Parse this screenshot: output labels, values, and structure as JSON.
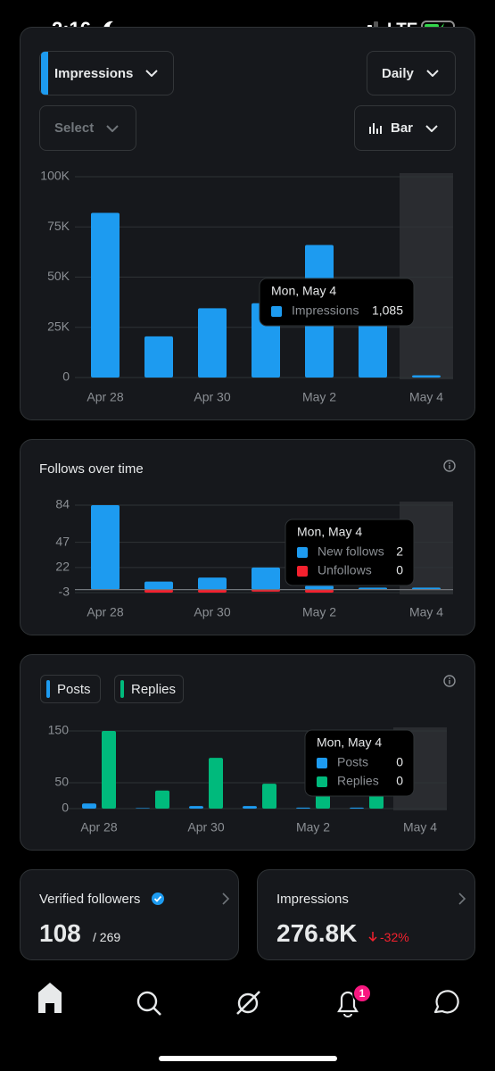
{
  "status_bar": {
    "time": "2:16",
    "network": "LTE"
  },
  "controls": {
    "metric": "Impressions",
    "period": "Daily",
    "compare": "Select",
    "chart_type": "Bar"
  },
  "chart_data": [
    {
      "type": "bar",
      "categories": [
        "Apr 28",
        null,
        "Apr 30",
        null,
        "May 2",
        null,
        "May 4"
      ],
      "series": [
        {
          "name": "Impressions",
          "color": "#1d9bf0",
          "values": [
            82000,
            20500,
            34500,
            37000,
            66000,
            32000,
            1085
          ],
          "value_labels": [
            null,
            null,
            null,
            null,
            null,
            null,
            "1,085"
          ]
        }
      ],
      "ylim": [
        0,
        100000
      ],
      "yticks": [
        0,
        {
          "value": 25000,
          "label": "25K"
        },
        {
          "value": 50000,
          "label": "50K"
        },
        {
          "value": 75000,
          "label": "75K"
        },
        {
          "value": 100000,
          "label": "100K"
        }
      ],
      "grid": true,
      "tooltip": {
        "title": "Mon, May 4"
      }
    },
    {
      "type": "bar",
      "title": "Follows over time",
      "stacked": true,
      "categories": [
        "Apr 28",
        null,
        "Apr 30",
        null,
        "May 2",
        null,
        "May 4"
      ],
      "series": [
        {
          "name": "New follows",
          "color": "#1d9bf0",
          "values": [
            84,
            8,
            12,
            22,
            4,
            2,
            2
          ]
        },
        {
          "name": "Unfollows",
          "color": "#f4212e",
          "values": [
            0,
            -3,
            -3,
            -2,
            -3,
            0,
            0
          ]
        }
      ],
      "ylim": [
        -3,
        84
      ],
      "yticks": [
        -3,
        22,
        47,
        84
      ],
      "grid": true,
      "tooltip": {
        "title": "Mon, May 4"
      }
    },
    {
      "type": "bar",
      "categories": [
        "Apr 28",
        null,
        "Apr 30",
        null,
        "May 2",
        null,
        "May 4"
      ],
      "series": [
        {
          "name": "Posts",
          "color": "#1d9bf0",
          "values": [
            10,
            1,
            5,
            5,
            2,
            2,
            0
          ]
        },
        {
          "name": "Replies",
          "color": "#00ba7c",
          "values": [
            150,
            35,
            98,
            48,
            45,
            40,
            0
          ]
        }
      ],
      "ylim": [
        0,
        150
      ],
      "yticks": [
        0,
        50,
        150
      ],
      "grid": true,
      "tooltip": {
        "title": "Mon, May 4"
      }
    }
  ],
  "cards": [
    {
      "title": "Verified followers",
      "value": "108",
      "total": "/ 269"
    },
    {
      "title": "Impressions",
      "value": "276.8K",
      "change": "-32%"
    }
  ],
  "nav": {
    "notifications_badge": "1"
  }
}
